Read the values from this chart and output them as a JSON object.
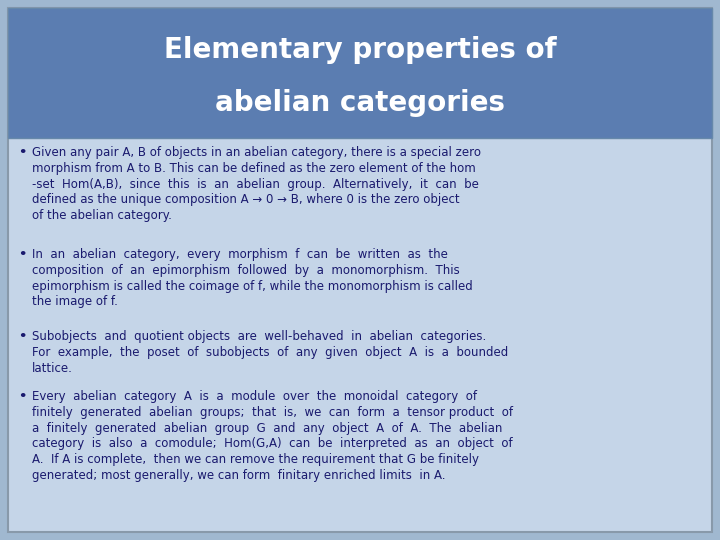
{
  "title_line1": "Elementary properties of",
  "title_line2": "abelian categories",
  "title_bg_color": "#5b7db1",
  "title_text_color": "#ffffff",
  "body_bg_color": "#c5d5e8",
  "outer_bg_color": "#a0b8d0",
  "text_color": "#1a1a6e",
  "bullet_color": "#1a1a6e",
  "title_fontsize": 20,
  "body_fontsize": 8.5,
  "bullet1": "Given any pair A, B of objects in an abelian category, there is a special zero\nmorphism from A to B. This can be defined as the zero element of the hom\n-set  Hom(A,B),  since  this  is  an  abelian  group.  Alternatively,  it  can  be\ndefined as the unique composition A → 0 → B, where 0 is the zero object\nof the abelian category.",
  "bullet2": "In  an  abelian  category,  every  morphism  f  can  be  written  as  the\ncomposition  of  an  epimorphism  followed  by  a  monomorphism.  This\nepimorphism is called the coimage of f, while the monomorphism is called\nthe image of f.",
  "bullet3": "Subobjects  and  quotient objects  are  well-behaved  in  abelian  categories.\nFor  example,  the  poset  of  subobjects  of  any  given  object  A  is  a  bounded\nlattice.",
  "bullet4": "Every  abelian  category  A  is  a  module  over  the  monoidal  category  of\nfinitely  generated  abelian  groups;  that  is,  we  can  form  a  tensor product  of\na  finitely  generated  abelian  group  G  and  any  object  A  of  A.  The  abelian\ncategory  is  also  a  comodule;  Hom(G,A)  can  be  interpreted  as  an  object  of\nA.  If A is complete,  then we can remove the requirement that G be finitely\ngenerated; most generally, we can form  finitary enriched limits  in A."
}
